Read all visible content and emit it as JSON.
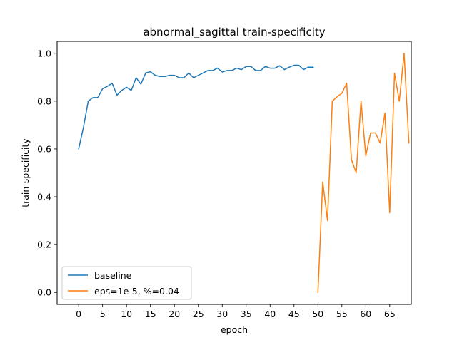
{
  "chart_data": {
    "type": "line",
    "title": "abnormal_sagittal train-specificity",
    "xlabel": "epoch",
    "ylabel": "train-specificity",
    "xlim": [
      -4.5,
      69.5
    ],
    "ylim": [
      -0.05,
      1.05
    ],
    "x_ticks": [
      0,
      5,
      10,
      15,
      20,
      25,
      30,
      35,
      40,
      45,
      50,
      55,
      60,
      65
    ],
    "y_ticks": [
      0.0,
      0.2,
      0.4,
      0.6,
      0.8,
      1.0
    ],
    "x_tick_labels": [
      "0",
      "5",
      "10",
      "15",
      "20",
      "25",
      "30",
      "35",
      "40",
      "45",
      "50",
      "55",
      "60",
      "65"
    ],
    "y_tick_labels": [
      "0.0",
      "0.2",
      "0.4",
      "0.6",
      "0.8",
      "1.0"
    ],
    "grid": false,
    "legend_position": "lower-left",
    "series": [
      {
        "name": "baseline",
        "color": "#1f77b4",
        "x": [
          0,
          1,
          2,
          3,
          4,
          5,
          6,
          7,
          8,
          9,
          10,
          11,
          12,
          13,
          14,
          15,
          16,
          17,
          18,
          19,
          20,
          21,
          22,
          23,
          24,
          25,
          26,
          27,
          28,
          29,
          30,
          31,
          32,
          33,
          34,
          35,
          36,
          37,
          38,
          39,
          40,
          41,
          42,
          43,
          44,
          45,
          46,
          47,
          48,
          49
        ],
        "values": [
          0.6,
          0.69,
          0.8,
          0.815,
          0.815,
          0.852,
          0.862,
          0.875,
          0.825,
          0.845,
          0.858,
          0.845,
          0.898,
          0.871,
          0.918,
          0.923,
          0.908,
          0.903,
          0.903,
          0.908,
          0.908,
          0.898,
          0.898,
          0.918,
          0.898,
          0.908,
          0.918,
          0.928,
          0.928,
          0.938,
          0.922,
          0.928,
          0.928,
          0.938,
          0.932,
          0.945,
          0.945,
          0.928,
          0.928,
          0.945,
          0.938,
          0.938,
          0.948,
          0.932,
          0.942,
          0.95,
          0.95,
          0.932,
          0.942,
          0.942
        ]
      },
      {
        "name": "eps=1e-5, %=0.04",
        "color": "#ff7f0e",
        "x": [
          50,
          51,
          52,
          53,
          54,
          55,
          56,
          57,
          58,
          59,
          60,
          61,
          62,
          63,
          64,
          65,
          66,
          67,
          68,
          69
        ],
        "values": [
          0.0,
          0.462,
          0.3,
          0.8,
          0.818,
          0.833,
          0.875,
          0.555,
          0.5,
          0.8,
          0.571,
          0.667,
          0.667,
          0.625,
          0.75,
          0.333,
          0.917,
          0.8,
          1.0,
          0.625
        ]
      }
    ]
  }
}
